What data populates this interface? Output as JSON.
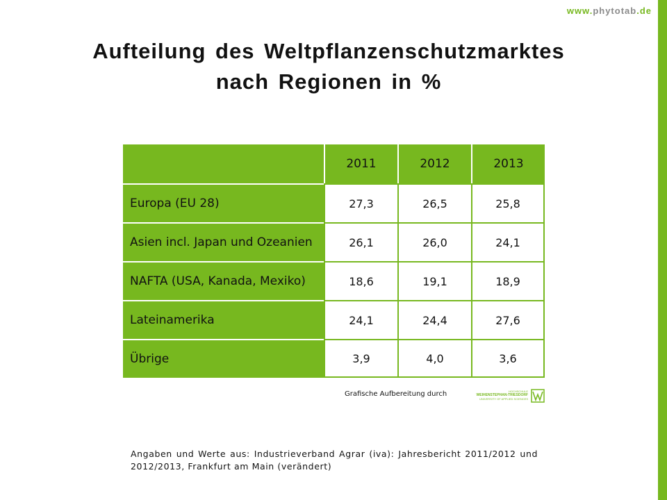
{
  "brand": {
    "www": "www",
    "dot1": ".",
    "name": "phytotab",
    "dot2": ".",
    "tld": "de"
  },
  "title": {
    "line1": "Aufteilung des Weltpflanzenschutzmarktes",
    "line2": "nach Regionen in %"
  },
  "table": {
    "years": [
      "2011",
      "2012",
      "2013"
    ],
    "rows": [
      {
        "region": "Europa (EU 28)",
        "values": [
          "27,3",
          "26,5",
          "25,8"
        ]
      },
      {
        "region": "Asien incl. Japan und Ozeanien",
        "values": [
          "26,1",
          "26,0",
          "24,1"
        ]
      },
      {
        "region": "NAFTA (USA, Kanada, Mexiko)",
        "values": [
          "18,6",
          "19,1",
          "18,9"
        ]
      },
      {
        "region": "Lateinamerika",
        "values": [
          "24,1",
          "24,4",
          "27,6"
        ]
      },
      {
        "region": "Übrige",
        "values": [
          "3,9",
          "4,0",
          "3,6"
        ]
      }
    ]
  },
  "credit": "Grafische Aufbereitung durch",
  "logo": {
    "line1": "HOCHSCHULE",
    "line2": "WEIHENSTEPHAN-TRIESDORF",
    "line3": "UNIVERSITY OF APPLIED SCIENCES"
  },
  "source": "Angaben und Werte aus: Industrieverband Agrar (iva): Jahresbericht 2011/2012 und 2012/2013, Frankfurt am Main (verändert)",
  "colors": {
    "accent": "#77b81f",
    "brand_gray": "#8a8a8a"
  }
}
